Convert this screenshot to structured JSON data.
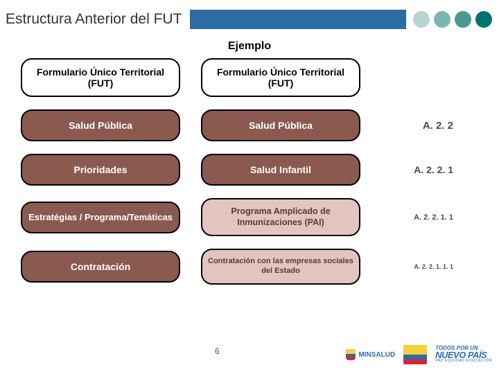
{
  "title": "Estructura Anterior del FUT",
  "subtitle": "Ejemplo",
  "dots": [
    "#b7d5d1",
    "#7db6b1",
    "#4a998f",
    "#00736a"
  ],
  "rows": [
    {
      "left": {
        "text": "Formulario Único Territorial (FUT)",
        "style": "box-white"
      },
      "right": {
        "text": "Formulario Único Territorial (FUT)",
        "style": "box-white"
      },
      "code": {
        "text": "",
        "fs": 14
      }
    },
    {
      "left": {
        "text": "Salud Pública",
        "style": "box-dark"
      },
      "right": {
        "text": "Salud Pública",
        "style": "box-dark"
      },
      "code": {
        "text": "A. 2. 2",
        "fs": 15
      }
    },
    {
      "left": {
        "text": "Prioridades",
        "style": "box-dark"
      },
      "right": {
        "text": "Salud Infantil",
        "style": "box-dark"
      },
      "code": {
        "text": "A. 2. 2. 1",
        "fs": 14
      }
    },
    {
      "left": {
        "text": "Estratégias / Programa/Temáticas",
        "style": "box-dark small"
      },
      "right": {
        "text": "Programa Amplicado de Inmunizaciones (PAI)",
        "style": "box-light"
      },
      "code": {
        "text": "A. 2. 2. 1. 1",
        "fs": 11
      }
    },
    {
      "left": {
        "text": "Contratación",
        "style": "box-dark"
      },
      "right": {
        "text": "Contratación con las empresas sociales del Estado",
        "style": "box-light xsmall"
      },
      "code": {
        "text": "A. 2. 2. 1. 1. 1",
        "fs": 9
      }
    }
  ],
  "page_number": "6",
  "logos": {
    "minsalud": "MINSALUD",
    "np_line1": "TODOS POR UN",
    "np_line2": "NUEVO PAÍS",
    "np_line3": "PAZ EQUIDAD EDUCACIÓN"
  },
  "colors": {
    "title_bar": "#2b6ca3",
    "box_dark_bg": "#8a5a50",
    "box_light_bg": "#e3c5c0"
  }
}
